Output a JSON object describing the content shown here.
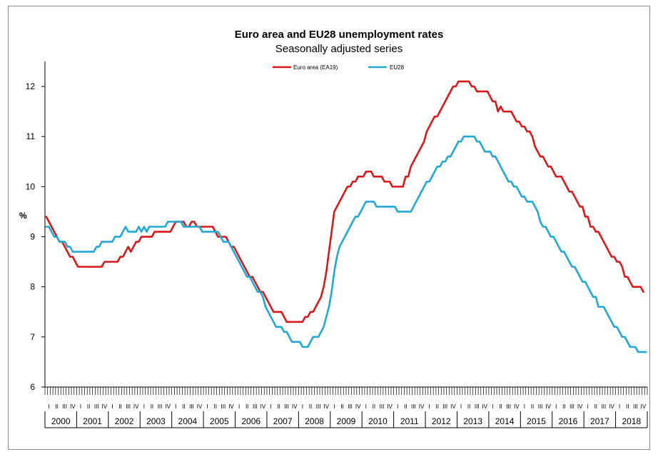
{
  "chart_data": {
    "type": "line",
    "title": "Euro area and EU28 unemployment rates",
    "subtitle": "Seasonally adjusted series",
    "ylabel": "%",
    "ylim": [
      6,
      12.5
    ],
    "yticks": [
      6,
      7,
      8,
      9,
      10,
      11,
      12
    ],
    "grid": false,
    "legend_position": "top",
    "x_start": "2000-01",
    "years": [
      "2000",
      "2001",
      "2002",
      "2003",
      "2004",
      "2005",
      "2006",
      "2007",
      "2008",
      "2009",
      "2010",
      "2011",
      "2012",
      "2013",
      "2014",
      "2015",
      "2016",
      "2017",
      "2018"
    ],
    "quarter_labels": [
      "I",
      "II",
      "III",
      "IV"
    ],
    "series": [
      {
        "name": "Euro area (EA19)",
        "color": "#d7191c",
        "values": [
          9.4,
          9.3,
          9.2,
          9.1,
          9.0,
          8.9,
          8.9,
          8.8,
          8.7,
          8.6,
          8.6,
          8.5,
          8.4,
          8.4,
          8.4,
          8.4,
          8.4,
          8.4,
          8.4,
          8.4,
          8.4,
          8.4,
          8.5,
          8.5,
          8.5,
          8.5,
          8.5,
          8.5,
          8.6,
          8.6,
          8.7,
          8.8,
          8.7,
          8.8,
          8.9,
          8.9,
          9.0,
          9.0,
          9.0,
          9.0,
          9.0,
          9.1,
          9.1,
          9.1,
          9.1,
          9.1,
          9.1,
          9.1,
          9.2,
          9.3,
          9.3,
          9.3,
          9.3,
          9.2,
          9.2,
          9.3,
          9.3,
          9.2,
          9.2,
          9.2,
          9.2,
          9.2,
          9.2,
          9.2,
          9.1,
          9.0,
          9.0,
          9.0,
          9.0,
          8.9,
          8.8,
          8.8,
          8.7,
          8.6,
          8.5,
          8.4,
          8.3,
          8.2,
          8.2,
          8.1,
          8.0,
          7.9,
          7.9,
          7.8,
          7.7,
          7.6,
          7.5,
          7.5,
          7.5,
          7.5,
          7.4,
          7.3,
          7.3,
          7.3,
          7.3,
          7.3,
          7.3,
          7.3,
          7.4,
          7.4,
          7.5,
          7.5,
          7.6,
          7.7,
          7.8,
          8.0,
          8.3,
          8.7,
          9.1,
          9.5,
          9.6,
          9.7,
          9.8,
          9.9,
          10.0,
          10.0,
          10.1,
          10.1,
          10.2,
          10.2,
          10.2,
          10.3,
          10.3,
          10.3,
          10.2,
          10.2,
          10.2,
          10.2,
          10.1,
          10.1,
          10.1,
          10.0,
          10.0,
          10.0,
          10.0,
          10.0,
          10.2,
          10.2,
          10.4,
          10.5,
          10.6,
          10.7,
          10.8,
          10.9,
          11.1,
          11.2,
          11.3,
          11.4,
          11.4,
          11.5,
          11.6,
          11.7,
          11.8,
          11.9,
          12.0,
          12.0,
          12.1,
          12.1,
          12.1,
          12.1,
          12.1,
          12.0,
          12.0,
          11.9,
          11.9,
          11.9,
          11.9,
          11.9,
          11.8,
          11.7,
          11.7,
          11.5,
          11.6,
          11.5,
          11.5,
          11.5,
          11.5,
          11.4,
          11.3,
          11.3,
          11.2,
          11.2,
          11.1,
          11.1,
          11.0,
          10.8,
          10.7,
          10.6,
          10.6,
          10.5,
          10.4,
          10.4,
          10.3,
          10.2,
          10.2,
          10.2,
          10.1,
          10.0,
          9.9,
          9.9,
          9.8,
          9.7,
          9.6,
          9.6,
          9.4,
          9.4,
          9.2,
          9.2,
          9.1,
          9.1,
          9.0,
          8.9,
          8.8,
          8.7,
          8.6,
          8.6,
          8.5,
          8.5,
          8.4,
          8.2,
          8.2,
          8.1,
          8.0,
          8.0,
          8.0,
          8.0,
          7.9
        ]
      },
      {
        "name": "EU28",
        "color": "#21a9d4",
        "values": [
          9.2,
          9.2,
          9.1,
          9.0,
          9.0,
          8.9,
          8.9,
          8.9,
          8.8,
          8.8,
          8.7,
          8.7,
          8.7,
          8.7,
          8.7,
          8.7,
          8.7,
          8.7,
          8.7,
          8.8,
          8.8,
          8.9,
          8.9,
          8.9,
          8.9,
          8.9,
          9.0,
          9.0,
          9.0,
          9.1,
          9.2,
          9.1,
          9.1,
          9.1,
          9.1,
          9.2,
          9.1,
          9.2,
          9.1,
          9.2,
          9.2,
          9.2,
          9.2,
          9.2,
          9.2,
          9.2,
          9.3,
          9.3,
          9.3,
          9.3,
          9.3,
          9.3,
          9.2,
          9.2,
          9.2,
          9.2,
          9.2,
          9.2,
          9.2,
          9.1,
          9.1,
          9.1,
          9.1,
          9.1,
          9.1,
          9.1,
          9.0,
          8.9,
          8.9,
          8.9,
          8.8,
          8.7,
          8.6,
          8.5,
          8.4,
          8.3,
          8.2,
          8.2,
          8.1,
          8.0,
          7.9,
          7.9,
          7.8,
          7.6,
          7.5,
          7.4,
          7.3,
          7.2,
          7.2,
          7.2,
          7.1,
          7.1,
          7.0,
          6.9,
          6.9,
          6.9,
          6.9,
          6.8,
          6.8,
          6.8,
          6.9,
          7.0,
          7.0,
          7.0,
          7.1,
          7.2,
          7.4,
          7.6,
          7.9,
          8.3,
          8.6,
          8.8,
          8.9,
          9.0,
          9.1,
          9.2,
          9.3,
          9.4,
          9.4,
          9.5,
          9.6,
          9.7,
          9.7,
          9.7,
          9.7,
          9.6,
          9.6,
          9.6,
          9.6,
          9.6,
          9.6,
          9.6,
          9.6,
          9.5,
          9.5,
          9.5,
          9.5,
          9.5,
          9.5,
          9.6,
          9.7,
          9.8,
          9.9,
          10.0,
          10.1,
          10.1,
          10.2,
          10.3,
          10.4,
          10.4,
          10.5,
          10.5,
          10.6,
          10.6,
          10.7,
          10.8,
          10.9,
          10.9,
          11.0,
          11.0,
          11.0,
          11.0,
          11.0,
          10.9,
          10.9,
          10.8,
          10.7,
          10.7,
          10.7,
          10.6,
          10.6,
          10.5,
          10.4,
          10.3,
          10.2,
          10.1,
          10.1,
          10.0,
          10.0,
          9.9,
          9.8,
          9.8,
          9.7,
          9.7,
          9.7,
          9.6,
          9.5,
          9.3,
          9.2,
          9.2,
          9.1,
          9.0,
          9.0,
          8.9,
          8.8,
          8.7,
          8.7,
          8.6,
          8.5,
          8.4,
          8.4,
          8.3,
          8.2,
          8.1,
          8.1,
          8.0,
          7.9,
          7.8,
          7.8,
          7.6,
          7.6,
          7.6,
          7.5,
          7.4,
          7.3,
          7.2,
          7.2,
          7.1,
          7.0,
          7.0,
          6.9,
          6.8,
          6.8,
          6.8,
          6.7,
          6.7,
          6.7,
          6.7
        ]
      }
    ]
  }
}
